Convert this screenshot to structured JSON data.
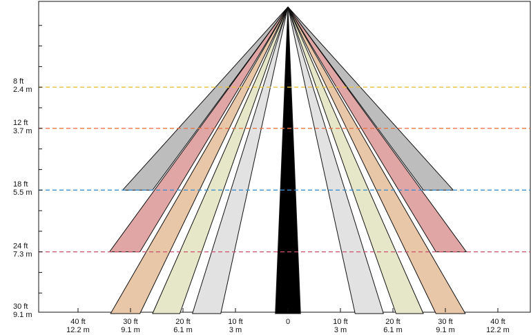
{
  "chart_data": {
    "type": "diagram",
    "title": "",
    "x_axis": {
      "unit_primary": "ft",
      "unit_secondary": "m",
      "range_ft": [
        -48,
        48
      ],
      "ticks": [
        {
          "value_ft": -40,
          "primary": "40 ft",
          "secondary": "12.2 m"
        },
        {
          "value_ft": -30,
          "primary": "30 ft",
          "secondary": "9.1 m"
        },
        {
          "value_ft": -20,
          "primary": "20 ft",
          "secondary": "6.1 m"
        },
        {
          "value_ft": -10,
          "primary": "10 ft",
          "secondary": "3 m"
        },
        {
          "value_ft": 0,
          "primary": "0",
          "secondary": ""
        },
        {
          "value_ft": 10,
          "primary": "10 ft",
          "secondary": "3 m"
        },
        {
          "value_ft": 20,
          "primary": "20 ft",
          "secondary": "6.1 m"
        },
        {
          "value_ft": 30,
          "primary": "30 ft",
          "secondary": "9.1 m"
        },
        {
          "value_ft": 40,
          "primary": "40 ft",
          "secondary": "12.2 m"
        }
      ]
    },
    "y_axis": {
      "unit_primary": "ft",
      "unit_secondary": "m",
      "range_ft": [
        0,
        30
      ],
      "ticks": [
        {
          "value_ft": 8,
          "primary": "8 ft",
          "secondary": "2.4 m"
        },
        {
          "value_ft": 12,
          "primary": "12 ft",
          "secondary": "3.7 m"
        },
        {
          "value_ft": 18,
          "primary": "18 ft",
          "secondary": "5.5 m"
        },
        {
          "value_ft": 24,
          "primary": "24 ft",
          "secondary": "7.3 m"
        },
        {
          "value_ft": 30,
          "primary": "30 ft",
          "secondary": "9.1 m"
        }
      ]
    },
    "height_lines": [
      {
        "depth_ft": 8,
        "color": "#e8c040"
      },
      {
        "depth_ft": 12,
        "color": "#e8764a"
      },
      {
        "depth_ft": 18,
        "color": "#3a8fd0"
      },
      {
        "depth_ft": 24,
        "color": "#c8506a"
      }
    ],
    "beams": [
      {
        "id": "gray",
        "fill": "#bdbdbd",
        "end_depth_ft": 18,
        "inner_ft": 25.8,
        "outer_ft": 31.5
      },
      {
        "id": "pink",
        "fill": "#e0a6a6",
        "end_depth_ft": 24,
        "inner_ft": 28.2,
        "outer_ft": 34
      },
      {
        "id": "peach",
        "fill": "#e8c6a8",
        "end_depth_ft": 30,
        "inner_ft": 28.2,
        "outer_ft": 33.8
      },
      {
        "id": "olive",
        "fill": "#e6e6c8",
        "end_depth_ft": 30,
        "inner_ft": 20.6,
        "outer_ft": 25.8
      },
      {
        "id": "light-gray",
        "fill": "#e2e2e2",
        "end_depth_ft": 30,
        "inner_ft": 12.8,
        "outer_ft": 18.2
      },
      {
        "id": "center",
        "fill": "#000000",
        "end_depth_ft": 30,
        "inner_ft": -2.4,
        "outer_ft": 2.4,
        "centered": true
      }
    ],
    "grid": false,
    "legend": "none"
  }
}
